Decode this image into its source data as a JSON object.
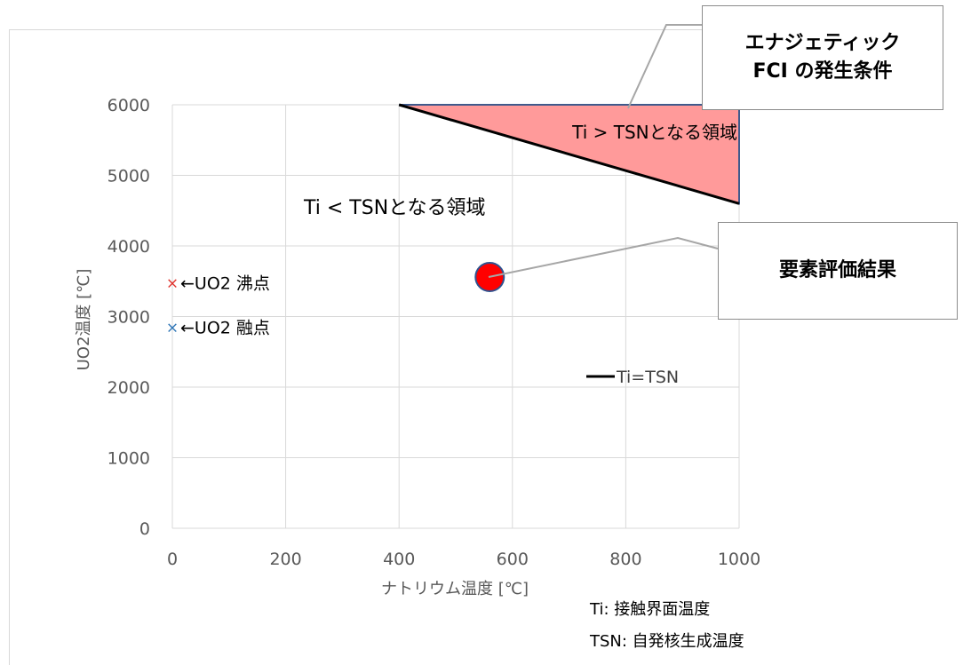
{
  "chart_data": {
    "type": "line",
    "xlabel": "ナトリウム温度 [℃]",
    "ylabel": "UO2温度 [℃]",
    "xlim": [
      0,
      1000
    ],
    "ylim": [
      0,
      6000
    ],
    "x_ticks": [
      0,
      200,
      400,
      600,
      800,
      1000
    ],
    "y_ticks": [
      0,
      1000,
      2000,
      3000,
      4000,
      5000,
      6000
    ],
    "grid": true,
    "series": [
      {
        "name": "Ti=TSN",
        "color": "#000000",
        "points": [
          [
            400,
            6000
          ],
          [
            1000,
            4600
          ]
        ]
      }
    ],
    "shaded_region": {
      "label": "Ti > TSNとなる領域",
      "fill": "#ff9a9a",
      "edge": "#3f5a8c",
      "points": [
        [
          400,
          6000
        ],
        [
          1000,
          6000
        ],
        [
          1000,
          4600
        ]
      ]
    },
    "region_labels": [
      {
        "id": "below",
        "text": "Ti < TSNとなる領域"
      }
    ],
    "markers": [
      {
        "id": "boiling",
        "symbol": "×",
        "color": "#e0312b",
        "x": 0,
        "y": 3480,
        "label": "←UO2 沸点"
      },
      {
        "id": "melting",
        "symbol": "×",
        "color": "#2e75b6",
        "x": 0,
        "y": 2850,
        "label": "←UO2 融点"
      }
    ],
    "result_point": {
      "x": 560,
      "y": 3560,
      "color": "#ff0000"
    },
    "legend": {
      "label": "Ti=TSN",
      "color": "#000000",
      "placement": "center-right"
    }
  },
  "callouts": {
    "energetic_line1": "エナジェティック",
    "energetic_line2": "FCI の発生条件",
    "result": "要素評価結果"
  },
  "notes": {
    "ti": "Ti: 接触界面温度",
    "tsn": "TSN: 自発核生成温度"
  }
}
